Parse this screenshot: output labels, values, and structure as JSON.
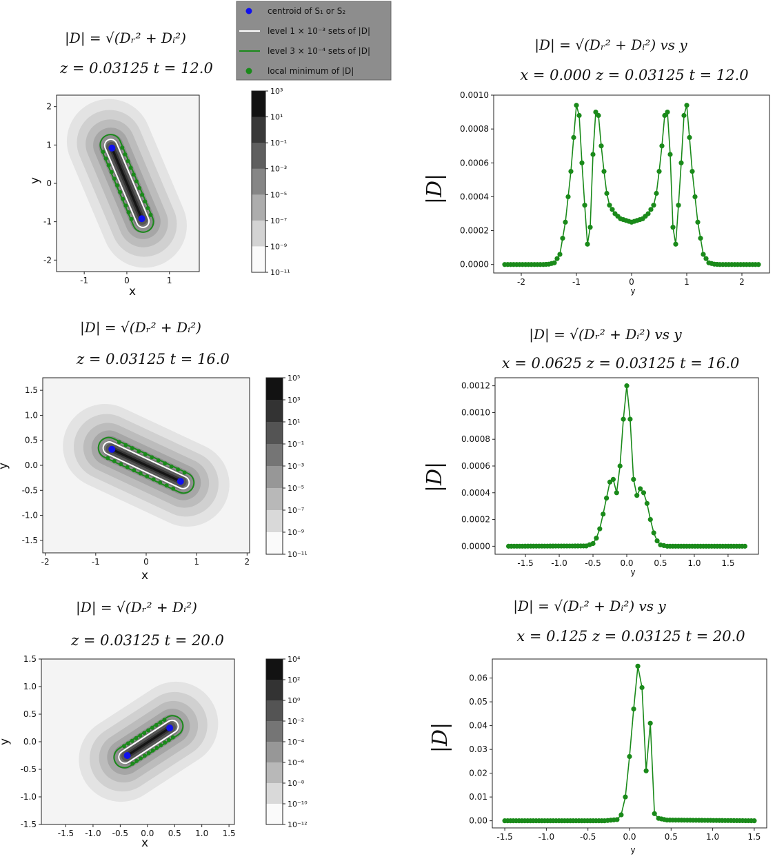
{
  "legend": {
    "items": [
      {
        "label": "centroid of S₁ or S₂",
        "kind": "dot",
        "color": "#1010ee"
      },
      {
        "label": "level 1 × 10⁻³ sets of |D|",
        "kind": "line",
        "color": "#ffffff"
      },
      {
        "label": "level 3 × 10⁻⁴ sets of |D|",
        "kind": "line",
        "color": "#1a8a1a"
      },
      {
        "label": "local minimum of |D|",
        "kind": "dot",
        "color": "#1a8a1a"
      }
    ]
  },
  "colors": {
    "green": "#1a8a1a",
    "blue": "#1010ee",
    "frame": "#555555"
  },
  "chart_data": [
    {
      "type": "contour",
      "title": "|D| = √(Dᵣ² + Dᵢ²)",
      "subtitle": "z = 0.03125    t = 12.0",
      "xlabel": "x",
      "ylabel": "y",
      "xlim": [
        -1.65,
        1.7
      ],
      "ylim": [
        -2.3,
        2.3
      ],
      "xticks": [
        "-1",
        "0",
        "1"
      ],
      "xtick_vals": [
        -1,
        0,
        1
      ],
      "yticks": [
        "2",
        "1",
        "0",
        "-1",
        "-2"
      ],
      "ytick_vals": [
        2,
        1,
        0,
        -1,
        -2
      ],
      "colorbar_ticks": [
        "10³",
        "10¹",
        "10⁻¹",
        "10⁻³",
        "10⁻⁵",
        "10⁻⁷",
        "10⁻⁹",
        "10⁻¹¹"
      ],
      "centroids": [
        [
          -0.35,
          0.92
        ],
        [
          0.35,
          -0.92
        ]
      ]
    },
    {
      "type": "line",
      "title": "|D| = √(Dᵣ² + Dᵢ²) vs y",
      "subtitle": "x = 0.000    z = 0.03125    t = 12.0",
      "xlabel": "y",
      "ylabel": "|D|",
      "xlim": [
        -2.5,
        2.5
      ],
      "ylim": [
        -5e-05,
        0.001
      ],
      "xticks": [
        "-2",
        "-1",
        "0",
        "1",
        "2"
      ],
      "xtick_vals": [
        -2,
        -1,
        0,
        1,
        2
      ],
      "yticks": [
        "0.0000",
        "0.0002",
        "0.0004",
        "0.0006",
        "0.0008",
        "0.0010"
      ],
      "ytick_vals": [
        0,
        0.0002,
        0.0004,
        0.0006,
        0.0008,
        0.001
      ],
      "series": [
        {
          "x": [
            -2.3,
            -1.6,
            -1.5,
            -1.4,
            -1.3,
            -1.2,
            -1.1,
            -1.05,
            -1.0,
            -0.95,
            -0.9,
            -0.85,
            -0.8,
            -0.75,
            -0.7,
            -0.65,
            -0.6,
            -0.55,
            -0.5,
            -0.45,
            -0.4,
            -0.3,
            -0.2,
            -0.1,
            0.0,
            0.1,
            0.2,
            0.3,
            0.4,
            0.45,
            0.5,
            0.55,
            0.6,
            0.65,
            0.7,
            0.75,
            0.8,
            0.85,
            0.9,
            0.95,
            1.0,
            1.05,
            1.1,
            1.2,
            1.3,
            1.4,
            1.5,
            1.6,
            2.3
          ],
          "y": [
            0,
            0,
            2e-06,
            1e-05,
            6e-05,
            0.00025,
            0.00055,
            0.00075,
            0.00094,
            0.00088,
            0.0006,
            0.00035,
            0.00012,
            0.00022,
            0.00065,
            0.0009,
            0.00088,
            0.0007,
            0.00055,
            0.00042,
            0.00035,
            0.0003,
            0.00027,
            0.00026,
            0.00025,
            0.00026,
            0.00027,
            0.0003,
            0.00035,
            0.00042,
            0.00055,
            0.0007,
            0.00088,
            0.0009,
            0.00065,
            0.00022,
            0.00012,
            0.00035,
            0.0006,
            0.00088,
            0.00094,
            0.00075,
            0.00055,
            0.00025,
            6e-05,
            1e-05,
            2e-06,
            0,
            0
          ]
        }
      ]
    },
    {
      "type": "contour",
      "title": "|D| = √(Dᵣ² + Dᵢ²)",
      "subtitle": "z = 0.03125    t = 16.0",
      "xlabel": "x",
      "ylabel": "y",
      "xlim": [
        -2.05,
        2.05
      ],
      "ylim": [
        -1.75,
        1.75
      ],
      "xticks": [
        "-2",
        "-1",
        "0",
        "1",
        "2"
      ],
      "xtick_vals": [
        -2,
        -1,
        0,
        1,
        2
      ],
      "yticks": [
        "1.5",
        "1.0",
        "0.5",
        "0.0",
        "-0.5",
        "-1.0",
        "-1.5"
      ],
      "ytick_vals": [
        1.5,
        1.0,
        0.5,
        0.0,
        -0.5,
        -1.0,
        -1.5
      ],
      "colorbar_ticks": [
        "10⁵",
        "10³",
        "10¹",
        "10⁻¹",
        "10⁻³",
        "10⁻⁵",
        "10⁻⁷",
        "10⁻⁹",
        "10⁻¹¹"
      ],
      "centroids": [
        [
          -0.68,
          0.32
        ],
        [
          0.68,
          -0.32
        ]
      ]
    },
    {
      "type": "line",
      "title": "|D| = √(Dᵣ² + Dᵢ²) vs y",
      "subtitle": "x = 0.0625    z = 0.03125    t = 16.0",
      "xlabel": "y",
      "ylabel": "|D|",
      "xlim": [
        -1.95,
        1.95
      ],
      "ylim": [
        -6e-05,
        0.00126
      ],
      "xticks": [
        "-1.5",
        "-1.0",
        "-0.5",
        "0.0",
        "0.5",
        "1.0",
        "1.5"
      ],
      "xtick_vals": [
        -1.5,
        -1.0,
        -0.5,
        0.0,
        0.5,
        1.0,
        1.5
      ],
      "yticks": [
        "0.0000",
        "0.0002",
        "0.0004",
        "0.0006",
        "0.0008",
        "0.0010",
        "0.0012"
      ],
      "ytick_vals": [
        0,
        0.0002,
        0.0004,
        0.0006,
        0.0008,
        0.001,
        0.0012
      ],
      "series": [
        {
          "x": [
            -1.75,
            -0.6,
            -0.5,
            -0.45,
            -0.4,
            -0.35,
            -0.3,
            -0.25,
            -0.2,
            -0.15,
            -0.1,
            -0.05,
            0.0,
            0.05,
            0.1,
            0.15,
            0.2,
            0.25,
            0.3,
            0.35,
            0.4,
            0.45,
            0.5,
            0.6,
            1.75
          ],
          "y": [
            0,
            2e-06,
            2e-05,
            6e-05,
            0.00013,
            0.00024,
            0.00036,
            0.00048,
            0.0005,
            0.0004,
            0.0006,
            0.00095,
            0.0012,
            0.00095,
            0.0005,
            0.00038,
            0.00043,
            0.0004,
            0.00032,
            0.0002,
            0.0001,
            4e-05,
            1e-05,
            0,
            0
          ]
        }
      ]
    },
    {
      "type": "contour",
      "title": "|D| = √(Dᵣ² + Dᵢ²)",
      "subtitle": "z = 0.03125    t = 20.0",
      "xlabel": "x",
      "ylabel": "y",
      "xlim": [
        -1.95,
        1.6
      ],
      "ylim": [
        -1.5,
        1.5
      ],
      "xticks": [
        "-1.5",
        "-1.0",
        "-0.5",
        "0.0",
        "0.5",
        "1.0",
        "1.5"
      ],
      "xtick_vals": [
        -1.5,
        -1.0,
        -0.5,
        0.0,
        0.5,
        1.0,
        1.5
      ],
      "yticks": [
        "1.5",
        "1.0",
        "0.5",
        "0.0",
        "-0.5",
        "-1.0",
        "-1.5"
      ],
      "ytick_vals": [
        1.5,
        1.0,
        0.5,
        0.0,
        -0.5,
        -1.0,
        -1.5
      ],
      "colorbar_ticks": [
        "10⁴",
        "10²",
        "10⁰",
        "10⁻²",
        "10⁻⁴",
        "10⁻⁶",
        "10⁻⁸",
        "10⁻¹⁰",
        "10⁻¹²"
      ],
      "centroids": [
        [
          -0.37,
          -0.25
        ],
        [
          0.41,
          0.25
        ]
      ]
    },
    {
      "type": "line",
      "title": "|D| = √(Dᵣ² + Dᵢ²) vs y",
      "subtitle": "x = 0.125    z = 0.03125    t = 20.0",
      "xlabel": "y",
      "ylabel": "|D|",
      "xlim": [
        -1.65,
        1.65
      ],
      "ylim": [
        -0.003,
        0.068
      ],
      "xticks": [
        "-1.5",
        "-1.0",
        "-0.5",
        "0.0",
        "0.5",
        "1.0",
        "1.5"
      ],
      "xtick_vals": [
        -1.5,
        -1.0,
        -0.5,
        0.0,
        0.5,
        1.0,
        1.5
      ],
      "yticks": [
        "0.00",
        "0.01",
        "0.02",
        "0.03",
        "0.04",
        "0.05",
        "0.06"
      ],
      "ytick_vals": [
        0,
        0.01,
        0.02,
        0.03,
        0.04,
        0.05,
        0.06
      ],
      "series": [
        {
          "x": [
            -1.5,
            -0.3,
            -0.15,
            -0.1,
            -0.05,
            0.0,
            0.05,
            0.1,
            0.15,
            0.2,
            0.25,
            0.3,
            0.35,
            0.45,
            1.5
          ],
          "y": [
            0,
            0,
            0.0005,
            0.0025,
            0.01,
            0.027,
            0.047,
            0.065,
            0.056,
            0.021,
            0.041,
            0.003,
            0.001,
            0.0003,
            0
          ]
        }
      ]
    }
  ]
}
